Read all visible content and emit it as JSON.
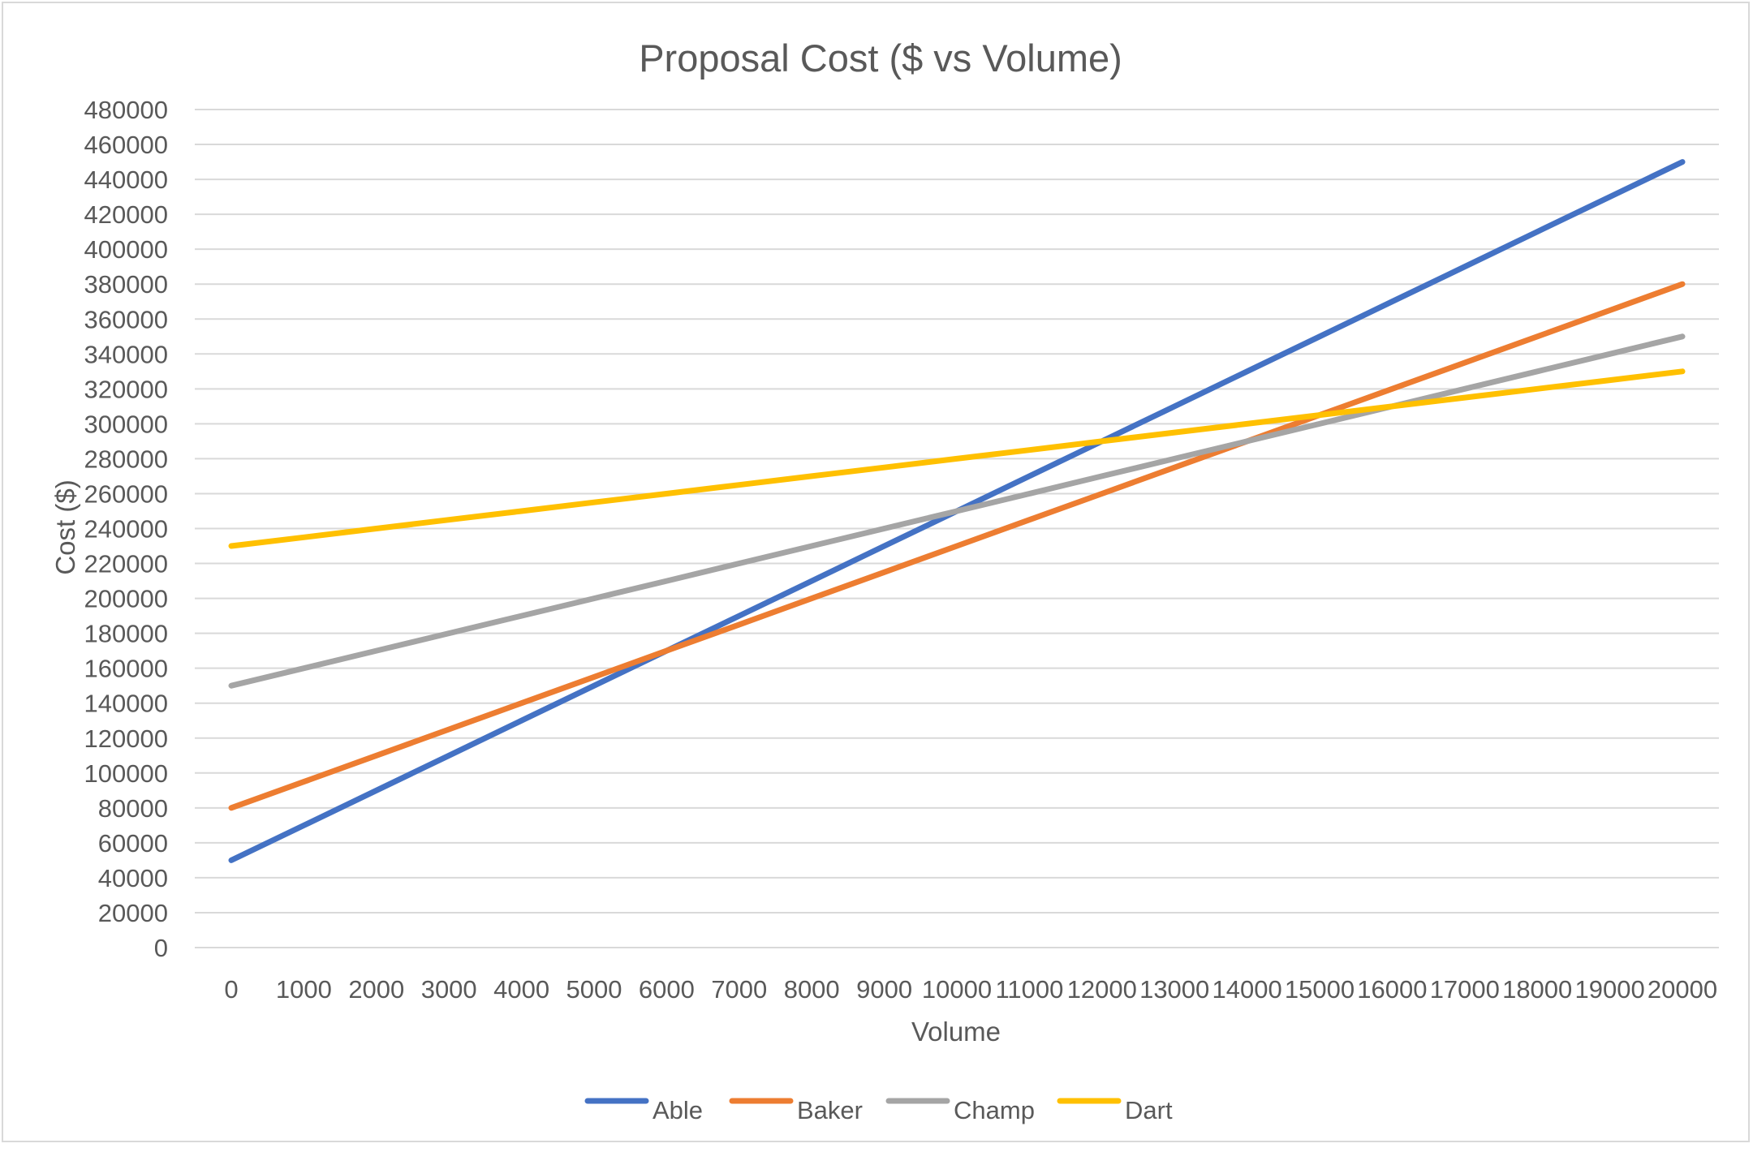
{
  "chart_data": {
    "type": "line",
    "title": "Proposal Cost ($ vs Volume)",
    "xlabel": "Volume",
    "ylabel": "Cost ($)",
    "x": [
      0,
      1000,
      2000,
      3000,
      4000,
      5000,
      6000,
      7000,
      8000,
      9000,
      10000,
      11000,
      12000,
      13000,
      14000,
      15000,
      16000,
      17000,
      18000,
      19000,
      20000
    ],
    "y_ticks": [
      0,
      20000,
      40000,
      60000,
      80000,
      100000,
      120000,
      140000,
      160000,
      180000,
      200000,
      220000,
      240000,
      260000,
      280000,
      300000,
      320000,
      340000,
      360000,
      380000,
      400000,
      420000,
      440000,
      460000,
      480000
    ],
    "ylim": [
      0,
      480000
    ],
    "grid": true,
    "legend_position": "bottom",
    "series": [
      {
        "name": "Able",
        "color": "#4472C4",
        "values": [
          50000,
          70000,
          90000,
          110000,
          130000,
          150000,
          170000,
          190000,
          210000,
          230000,
          250000,
          270000,
          290000,
          310000,
          330000,
          350000,
          370000,
          390000,
          410000,
          430000,
          450000
        ]
      },
      {
        "name": "Baker",
        "color": "#ED7D31",
        "values": [
          80000,
          95000,
          110000,
          125000,
          140000,
          155000,
          170000,
          185000,
          200000,
          215000,
          230000,
          245000,
          260000,
          275000,
          290000,
          305000,
          320000,
          335000,
          350000,
          365000,
          380000
        ]
      },
      {
        "name": "Champ",
        "color": "#A5A5A5",
        "values": [
          150000,
          160000,
          170000,
          180000,
          190000,
          200000,
          210000,
          220000,
          230000,
          240000,
          250000,
          260000,
          270000,
          280000,
          290000,
          300000,
          310000,
          320000,
          330000,
          340000,
          350000
        ]
      },
      {
        "name": "Dart",
        "color": "#FFC000",
        "values": [
          230000,
          235000,
          240000,
          245000,
          250000,
          255000,
          260000,
          265000,
          270000,
          275000,
          280000,
          285000,
          290000,
          295000,
          300000,
          305000,
          310000,
          315000,
          320000,
          325000,
          330000
        ]
      }
    ]
  }
}
